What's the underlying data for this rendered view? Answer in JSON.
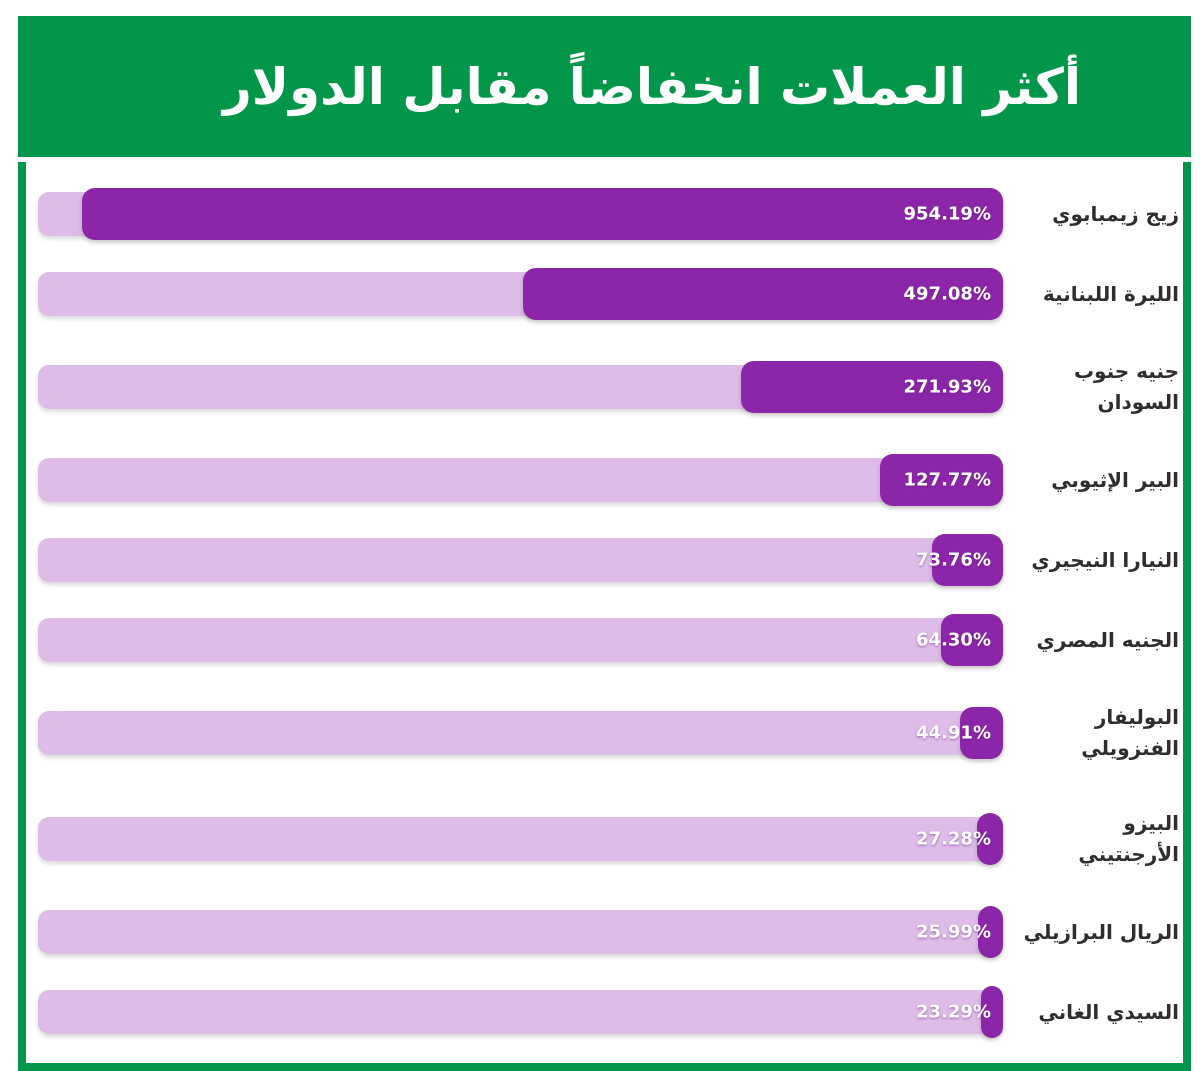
{
  "banner": {
    "title": "أكثر العملات انخفاضاً مقابل الدولار"
  },
  "colors": {
    "banner_green": "#019649",
    "bar_fill_purple": "#8c26a8",
    "bar_track_lavender": "#ddbce8",
    "value_text": "#ffffff",
    "label_text": "#2e2e2e"
  },
  "chart_data": {
    "type": "bar",
    "orientation": "horizontal",
    "direction": "rtl",
    "title": "أكثر العملات انخفاضاً مقابل الدولار",
    "title_translation": "Currencies that declined most against the dollar",
    "unit": "%",
    "xlabel": "",
    "ylabel": "",
    "xlim": [
      0,
      1000
    ],
    "grid": false,
    "legend": false,
    "categories": [
      "زيج زيمبابوي",
      "الليرة اللبنانية",
      "جنيه جنوب السودان",
      "البير الإثيوبي",
      "النيارا النيجيري",
      "الجنيه المصري",
      "البوليفار الفنزويلي",
      "البيزو الأرجنتيني",
      "الريال البرازيلي",
      "السيدي الغاني"
    ],
    "values": [
      954.19,
      497.08,
      271.93,
      127.77,
      73.76,
      64.3,
      44.91,
      27.28,
      25.99,
      23.29
    ],
    "rows": [
      {
        "label": "زيج زيمبابوي",
        "lines": [
          "زيج زيمبابوي"
        ],
        "value": 954.19,
        "display": "954.19%",
        "tall": false
      },
      {
        "label": "الليرة اللبنانية",
        "lines": [
          "الليرة اللبنانية"
        ],
        "value": 497.08,
        "display": "497.08%",
        "tall": false
      },
      {
        "label": "جنيه جنوب السودان",
        "lines": [
          "جنيه جنوب",
          "السودان"
        ],
        "value": 271.93,
        "display": "271.93%",
        "tall": true
      },
      {
        "label": "البير الإثيوبي",
        "lines": [
          "البير الإثيوبي"
        ],
        "value": 127.77,
        "display": "127.77%",
        "tall": false
      },
      {
        "label": "النيارا النيجيري",
        "lines": [
          "النيارا النيجيري"
        ],
        "value": 73.76,
        "display": "73.76%",
        "tall": false
      },
      {
        "label": "الجنيه المصري",
        "lines": [
          "الجنيه المصري"
        ],
        "value": 64.3,
        "display": "64.30%",
        "tall": false
      },
      {
        "label": "البوليفار الفنزويلي",
        "lines": [
          "البوليفار",
          "الفنزويلي"
        ],
        "value": 44.91,
        "display": "44.91%",
        "tall": true
      },
      {
        "label": "البيزو الأرجنتيني",
        "lines": [
          "البيزو",
          "الأرجنتيني"
        ],
        "value": 27.28,
        "display": "27.28%",
        "tall": true
      },
      {
        "label": "الريال البرازيلي",
        "lines": [
          "الريال البرازيلي"
        ],
        "value": 25.99,
        "display": "25.99%",
        "tall": false
      },
      {
        "label": "السيدي الغاني",
        "lines": [
          "السيدي الغاني"
        ],
        "value": 23.29,
        "display": "23.29%",
        "tall": false
      }
    ]
  }
}
